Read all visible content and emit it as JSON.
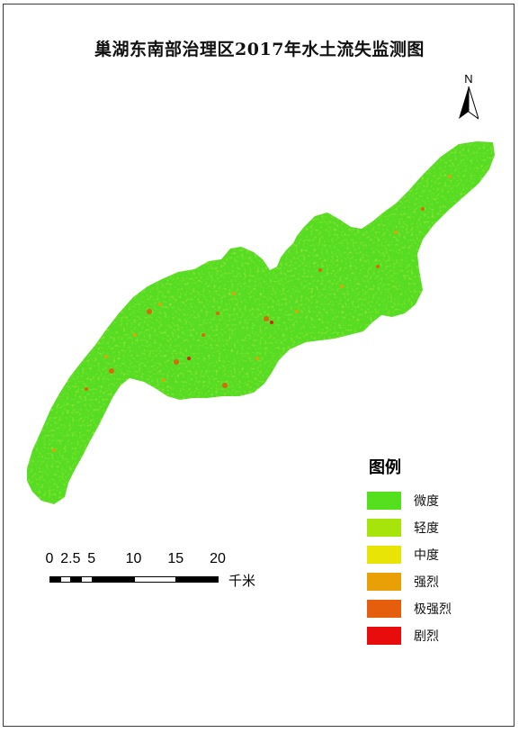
{
  "title": "巢湖东南部治理区2017年水土流失监测图",
  "north_arrow": {
    "label": "N"
  },
  "legend": {
    "title": "图例",
    "items": [
      {
        "label": "微度",
        "color": "#55e01e"
      },
      {
        "label": "轻度",
        "color": "#a6e40c"
      },
      {
        "label": "中度",
        "color": "#e8e405"
      },
      {
        "label": "强烈",
        "color": "#e9a006"
      },
      {
        "label": "极强烈",
        "color": "#e45e0b"
      },
      {
        "label": "剧烈",
        "color": "#e80c0c"
      }
    ]
  },
  "scale_bar": {
    "ticks": [
      "0",
      "2.5",
      "5",
      "10",
      "15",
      "20"
    ],
    "unit": "千米"
  },
  "colors": {
    "region_base": "#55dc23",
    "frame": "#3a3a3a"
  }
}
